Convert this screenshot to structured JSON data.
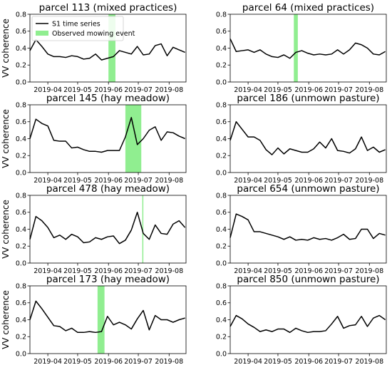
{
  "figure": {
    "legend": {
      "series_label": "S1 time series",
      "event_label": "Observed mowing event"
    },
    "colors": {
      "line": "#000000",
      "event": "#90ee90"
    }
  },
  "chart_data": [
    {
      "type": "line",
      "title": "parcel 113 (mixed practices)",
      "xlabel": "",
      "ylabel": "VV coherence",
      "xlim": [
        "2019-03-14",
        "2019-08-18"
      ],
      "ylim": [
        0,
        0.8
      ],
      "xticks": [
        "2019-04",
        "2019-05",
        "2019-06",
        "2019-07",
        "2019-08"
      ],
      "yticks": [
        "0.0",
        "0.2",
        "0.4",
        "0.6",
        "0.8"
      ],
      "events": [
        {
          "start": "2019-06-01",
          "end": "2019-06-08"
        }
      ],
      "x": [
        "2019-03-14",
        "2019-03-20",
        "2019-03-26",
        "2019-04-01",
        "2019-04-07",
        "2019-04-13",
        "2019-04-19",
        "2019-04-25",
        "2019-05-01",
        "2019-05-07",
        "2019-05-13",
        "2019-05-19",
        "2019-05-25",
        "2019-05-31",
        "2019-06-06",
        "2019-06-12",
        "2019-06-18",
        "2019-06-24",
        "2019-06-30",
        "2019-07-06",
        "2019-07-12",
        "2019-07-18",
        "2019-07-24",
        "2019-07-30",
        "2019-08-05",
        "2019-08-11",
        "2019-08-17"
      ],
      "y": [
        0.37,
        0.5,
        0.42,
        0.33,
        0.3,
        0.3,
        0.29,
        0.31,
        0.3,
        0.27,
        0.28,
        0.33,
        0.26,
        0.28,
        0.3,
        0.37,
        0.35,
        0.33,
        0.42,
        0.32,
        0.33,
        0.43,
        0.45,
        0.31,
        0.41,
        0.38,
        0.35
      ],
      "series": [
        {
          "name": "S1 time series"
        }
      ],
      "legend": {
        "position": "top-left"
      }
    },
    {
      "type": "line",
      "title": "parcel 64 (mixed practices)",
      "xlabel": "",
      "ylabel": "",
      "xlim": [
        "2019-03-14",
        "2019-08-18"
      ],
      "ylim": [
        0,
        0.8
      ],
      "xticks": [
        "2019-04",
        "2019-05",
        "2019-06",
        "2019-07",
        "2019-08"
      ],
      "yticks": [
        "0.0",
        "0.2",
        "0.4",
        "0.6",
        "0.8"
      ],
      "events": [
        {
          "start": "2019-05-17",
          "end": "2019-05-21"
        }
      ],
      "x": [
        "2019-03-14",
        "2019-03-20",
        "2019-03-26",
        "2019-04-01",
        "2019-04-07",
        "2019-04-13",
        "2019-04-19",
        "2019-04-25",
        "2019-05-01",
        "2019-05-07",
        "2019-05-13",
        "2019-05-19",
        "2019-05-25",
        "2019-05-31",
        "2019-06-06",
        "2019-06-12",
        "2019-06-18",
        "2019-06-24",
        "2019-06-30",
        "2019-07-06",
        "2019-07-12",
        "2019-07-18",
        "2019-07-24",
        "2019-07-30",
        "2019-08-05",
        "2019-08-11",
        "2019-08-17"
      ],
      "y": [
        0.51,
        0.36,
        0.37,
        0.38,
        0.35,
        0.38,
        0.33,
        0.3,
        0.29,
        0.32,
        0.28,
        0.35,
        0.37,
        0.34,
        0.32,
        0.33,
        0.32,
        0.33,
        0.38,
        0.33,
        0.38,
        0.46,
        0.44,
        0.4,
        0.33,
        0.32,
        0.36
      ],
      "series": [
        {
          "name": ""
        }
      ]
    },
    {
      "type": "line",
      "title": "parcel 145 (hay meadow)",
      "xlabel": "",
      "ylabel": "VV coherence",
      "xlim": [
        "2019-03-14",
        "2019-08-18"
      ],
      "ylim": [
        0,
        0.8
      ],
      "xticks": [
        "2019-04",
        "2019-05",
        "2019-06",
        "2019-07",
        "2019-08"
      ],
      "yticks": [
        "0.0",
        "0.2",
        "0.4",
        "0.6",
        "0.8"
      ],
      "events": [
        {
          "start": "2019-06-18",
          "end": "2019-07-04"
        }
      ],
      "x": [
        "2019-03-14",
        "2019-03-20",
        "2019-03-26",
        "2019-04-01",
        "2019-04-07",
        "2019-04-13",
        "2019-04-19",
        "2019-04-25",
        "2019-05-01",
        "2019-05-07",
        "2019-05-13",
        "2019-05-19",
        "2019-05-25",
        "2019-05-31",
        "2019-06-06",
        "2019-06-12",
        "2019-06-18",
        "2019-06-24",
        "2019-06-30",
        "2019-07-06",
        "2019-07-12",
        "2019-07-18",
        "2019-07-24",
        "2019-07-30",
        "2019-08-05",
        "2019-08-11",
        "2019-08-17"
      ],
      "y": [
        0.4,
        0.63,
        0.58,
        0.55,
        0.38,
        0.37,
        0.37,
        0.29,
        0.3,
        0.27,
        0.25,
        0.25,
        0.24,
        0.26,
        0.26,
        0.26,
        0.42,
        0.65,
        0.33,
        0.4,
        0.5,
        0.54,
        0.38,
        0.48,
        0.47,
        0.43,
        0.4
      ],
      "series": [
        {
          "name": ""
        }
      ]
    },
    {
      "type": "line",
      "title": "parcel 186 (unmown pasture)",
      "xlabel": "",
      "ylabel": "",
      "xlim": [
        "2019-03-14",
        "2019-08-18"
      ],
      "ylim": [
        0,
        0.8
      ],
      "xticks": [
        "2019-04",
        "2019-05",
        "2019-06",
        "2019-07",
        "2019-08"
      ],
      "yticks": [
        "0.0",
        "0.2",
        "0.4",
        "0.6",
        "0.8"
      ],
      "events": [],
      "x": [
        "2019-03-14",
        "2019-03-20",
        "2019-03-26",
        "2019-04-01",
        "2019-04-07",
        "2019-04-13",
        "2019-04-19",
        "2019-04-25",
        "2019-05-01",
        "2019-05-07",
        "2019-05-13",
        "2019-05-19",
        "2019-05-25",
        "2019-05-31",
        "2019-06-06",
        "2019-06-12",
        "2019-06-18",
        "2019-06-24",
        "2019-06-30",
        "2019-07-06",
        "2019-07-12",
        "2019-07-18",
        "2019-07-24",
        "2019-07-30",
        "2019-08-05",
        "2019-08-11",
        "2019-08-17"
      ],
      "y": [
        0.38,
        0.6,
        0.51,
        0.42,
        0.42,
        0.38,
        0.27,
        0.21,
        0.29,
        0.22,
        0.28,
        0.26,
        0.24,
        0.24,
        0.28,
        0.36,
        0.29,
        0.4,
        0.26,
        0.25,
        0.23,
        0.28,
        0.42,
        0.26,
        0.3,
        0.24,
        0.27
      ],
      "series": [
        {
          "name": ""
        }
      ]
    },
    {
      "type": "line",
      "title": "parcel 478 (hay meadow)",
      "xlabel": "",
      "ylabel": "VV coherence",
      "xlim": [
        "2019-03-14",
        "2019-08-18"
      ],
      "ylim": [
        0,
        0.8
      ],
      "xticks": [
        "2019-04",
        "2019-05",
        "2019-06",
        "2019-07",
        "2019-08"
      ],
      "yticks": [
        "0.0",
        "0.2",
        "0.4",
        "0.6",
        "0.8"
      ],
      "events": [
        {
          "start": "2019-07-05",
          "end": "2019-07-06"
        }
      ],
      "x": [
        "2019-03-14",
        "2019-03-20",
        "2019-03-26",
        "2019-04-01",
        "2019-04-07",
        "2019-04-13",
        "2019-04-19",
        "2019-04-25",
        "2019-05-01",
        "2019-05-07",
        "2019-05-13",
        "2019-05-19",
        "2019-05-25",
        "2019-05-31",
        "2019-06-06",
        "2019-06-12",
        "2019-06-18",
        "2019-06-24",
        "2019-06-30",
        "2019-07-06",
        "2019-07-12",
        "2019-07-18",
        "2019-07-24",
        "2019-07-30",
        "2019-08-05",
        "2019-08-11",
        "2019-08-17"
      ],
      "y": [
        0.28,
        0.55,
        0.5,
        0.42,
        0.3,
        0.33,
        0.28,
        0.34,
        0.31,
        0.24,
        0.25,
        0.3,
        0.28,
        0.31,
        0.32,
        0.23,
        0.27,
        0.39,
        0.6,
        0.35,
        0.28,
        0.45,
        0.35,
        0.34,
        0.46,
        0.5,
        0.42
      ],
      "series": [
        {
          "name": ""
        }
      ]
    },
    {
      "type": "line",
      "title": "parcel 654 (unmown pasture)",
      "xlabel": "",
      "ylabel": "",
      "xlim": [
        "2019-03-14",
        "2019-08-18"
      ],
      "ylim": [
        0,
        0.8
      ],
      "xticks": [
        "2019-04",
        "2019-05",
        "2019-06",
        "2019-07",
        "2019-08"
      ],
      "yticks": [
        "0.0",
        "0.2",
        "0.4",
        "0.6",
        "0.8"
      ],
      "events": [],
      "x": [
        "2019-03-14",
        "2019-03-20",
        "2019-03-26",
        "2019-04-01",
        "2019-04-07",
        "2019-04-13",
        "2019-04-19",
        "2019-04-25",
        "2019-05-01",
        "2019-05-07",
        "2019-05-13",
        "2019-05-19",
        "2019-05-25",
        "2019-05-31",
        "2019-06-06",
        "2019-06-12",
        "2019-06-18",
        "2019-06-24",
        "2019-06-30",
        "2019-07-06",
        "2019-07-12",
        "2019-07-18",
        "2019-07-24",
        "2019-07-30",
        "2019-08-05",
        "2019-08-11",
        "2019-08-17"
      ],
      "y": [
        0.3,
        0.58,
        0.55,
        0.51,
        0.37,
        0.37,
        0.35,
        0.33,
        0.31,
        0.28,
        0.31,
        0.27,
        0.28,
        0.27,
        0.3,
        0.28,
        0.29,
        0.27,
        0.3,
        0.34,
        0.28,
        0.29,
        0.4,
        0.4,
        0.29,
        0.35,
        0.33
      ],
      "series": [
        {
          "name": ""
        }
      ]
    },
    {
      "type": "line",
      "title": "parcel 173 (hay meadow)",
      "xlabel": "",
      "ylabel": "VV coherence",
      "xlim": [
        "2019-03-14",
        "2019-08-18"
      ],
      "ylim": [
        0,
        0.8
      ],
      "xticks": [
        "2019-04",
        "2019-05",
        "2019-06",
        "2019-07",
        "2019-08"
      ],
      "yticks": [
        "0.0",
        "0.2",
        "0.4",
        "0.6",
        "0.8"
      ],
      "events": [
        {
          "start": "2019-05-21",
          "end": "2019-05-28"
        }
      ],
      "x": [
        "2019-03-14",
        "2019-03-20",
        "2019-03-26",
        "2019-04-01",
        "2019-04-07",
        "2019-04-13",
        "2019-04-19",
        "2019-04-25",
        "2019-05-01",
        "2019-05-07",
        "2019-05-13",
        "2019-05-19",
        "2019-05-25",
        "2019-05-31",
        "2019-06-06",
        "2019-06-12",
        "2019-06-18",
        "2019-06-24",
        "2019-06-30",
        "2019-07-06",
        "2019-07-12",
        "2019-07-18",
        "2019-07-24",
        "2019-07-30",
        "2019-08-05",
        "2019-08-11",
        "2019-08-17"
      ],
      "y": [
        0.4,
        0.62,
        0.53,
        0.43,
        0.33,
        0.32,
        0.27,
        0.3,
        0.25,
        0.25,
        0.26,
        0.25,
        0.26,
        0.44,
        0.34,
        0.37,
        0.34,
        0.29,
        0.41,
        0.51,
        0.28,
        0.45,
        0.4,
        0.4,
        0.37,
        0.4,
        0.42
      ],
      "series": [
        {
          "name": ""
        }
      ]
    },
    {
      "type": "line",
      "title": "parcel 850 (unmown pasture)",
      "xlabel": "",
      "ylabel": "",
      "xlim": [
        "2019-03-14",
        "2019-08-18"
      ],
      "ylim": [
        0,
        0.8
      ],
      "xticks": [
        "2019-04",
        "2019-05",
        "2019-06",
        "2019-07",
        "2019-08"
      ],
      "yticks": [
        "0.0",
        "0.2",
        "0.4",
        "0.6",
        "0.8"
      ],
      "events": [],
      "x": [
        "2019-03-14",
        "2019-03-20",
        "2019-03-26",
        "2019-04-01",
        "2019-04-07",
        "2019-04-13",
        "2019-04-19",
        "2019-04-25",
        "2019-05-01",
        "2019-05-07",
        "2019-05-13",
        "2019-05-19",
        "2019-05-25",
        "2019-05-31",
        "2019-06-06",
        "2019-06-12",
        "2019-06-18",
        "2019-06-24",
        "2019-06-30",
        "2019-07-06",
        "2019-07-12",
        "2019-07-18",
        "2019-07-24",
        "2019-07-30",
        "2019-08-05",
        "2019-08-11",
        "2019-08-17"
      ],
      "y": [
        0.32,
        0.45,
        0.41,
        0.35,
        0.31,
        0.26,
        0.28,
        0.26,
        0.29,
        0.29,
        0.25,
        0.3,
        0.27,
        0.25,
        0.26,
        0.26,
        0.27,
        0.35,
        0.44,
        0.3,
        0.33,
        0.34,
        0.44,
        0.32,
        0.42,
        0.45,
        0.4
      ],
      "series": [
        {
          "name": ""
        }
      ]
    }
  ]
}
